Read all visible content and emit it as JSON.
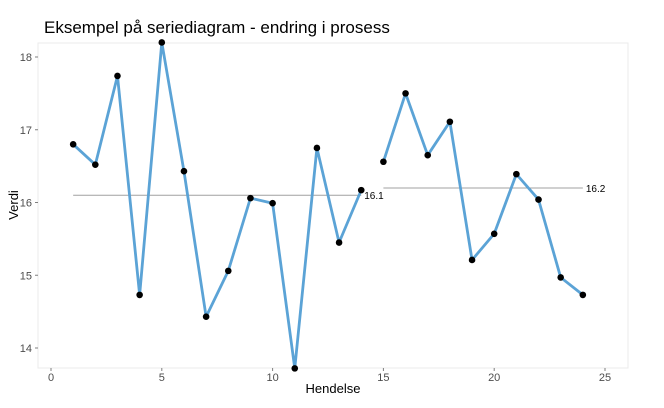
{
  "chart_data": {
    "type": "line",
    "title": "Eksempel på seriediagram - endring i prosess",
    "xlabel": "Hendelse",
    "ylabel": "Verdi",
    "xlim": [
      0,
      26
    ],
    "ylim": [
      13.6,
      18.4
    ],
    "x_ticks": [
      0,
      5,
      10,
      15,
      20,
      25
    ],
    "y_ticks": [
      14,
      15,
      16,
      17,
      18
    ],
    "grid": false,
    "colors": {
      "line": "#5ba3d6",
      "point": "#000000",
      "median": "#a0a0a0",
      "panel": "#ffffff",
      "panel_border": "#ebebeb"
    },
    "series": [
      {
        "segment": 1,
        "x": [
          1,
          2,
          3,
          4,
          5,
          6,
          7,
          8,
          9,
          10,
          11,
          12,
          13,
          14
        ],
        "values": [
          16.8,
          16.52,
          17.74,
          14.73,
          18.2,
          16.43,
          14.43,
          15.06,
          16.06,
          15.99,
          13.72,
          16.75,
          15.45,
          16.17
        ]
      },
      {
        "segment": 2,
        "x": [
          15,
          16,
          17,
          18,
          19,
          20,
          21,
          22,
          23,
          24
        ],
        "values": [
          16.56,
          17.5,
          16.65,
          17.11,
          15.21,
          15.57,
          16.39,
          16.04,
          14.97,
          14.73
        ]
      }
    ],
    "medians": [
      {
        "value": 16.1,
        "x_start": 1,
        "x_end": 14,
        "label": "16.1"
      },
      {
        "value": 16.2,
        "x_start": 15,
        "x_end": 24,
        "label": "16.2"
      }
    ]
  }
}
